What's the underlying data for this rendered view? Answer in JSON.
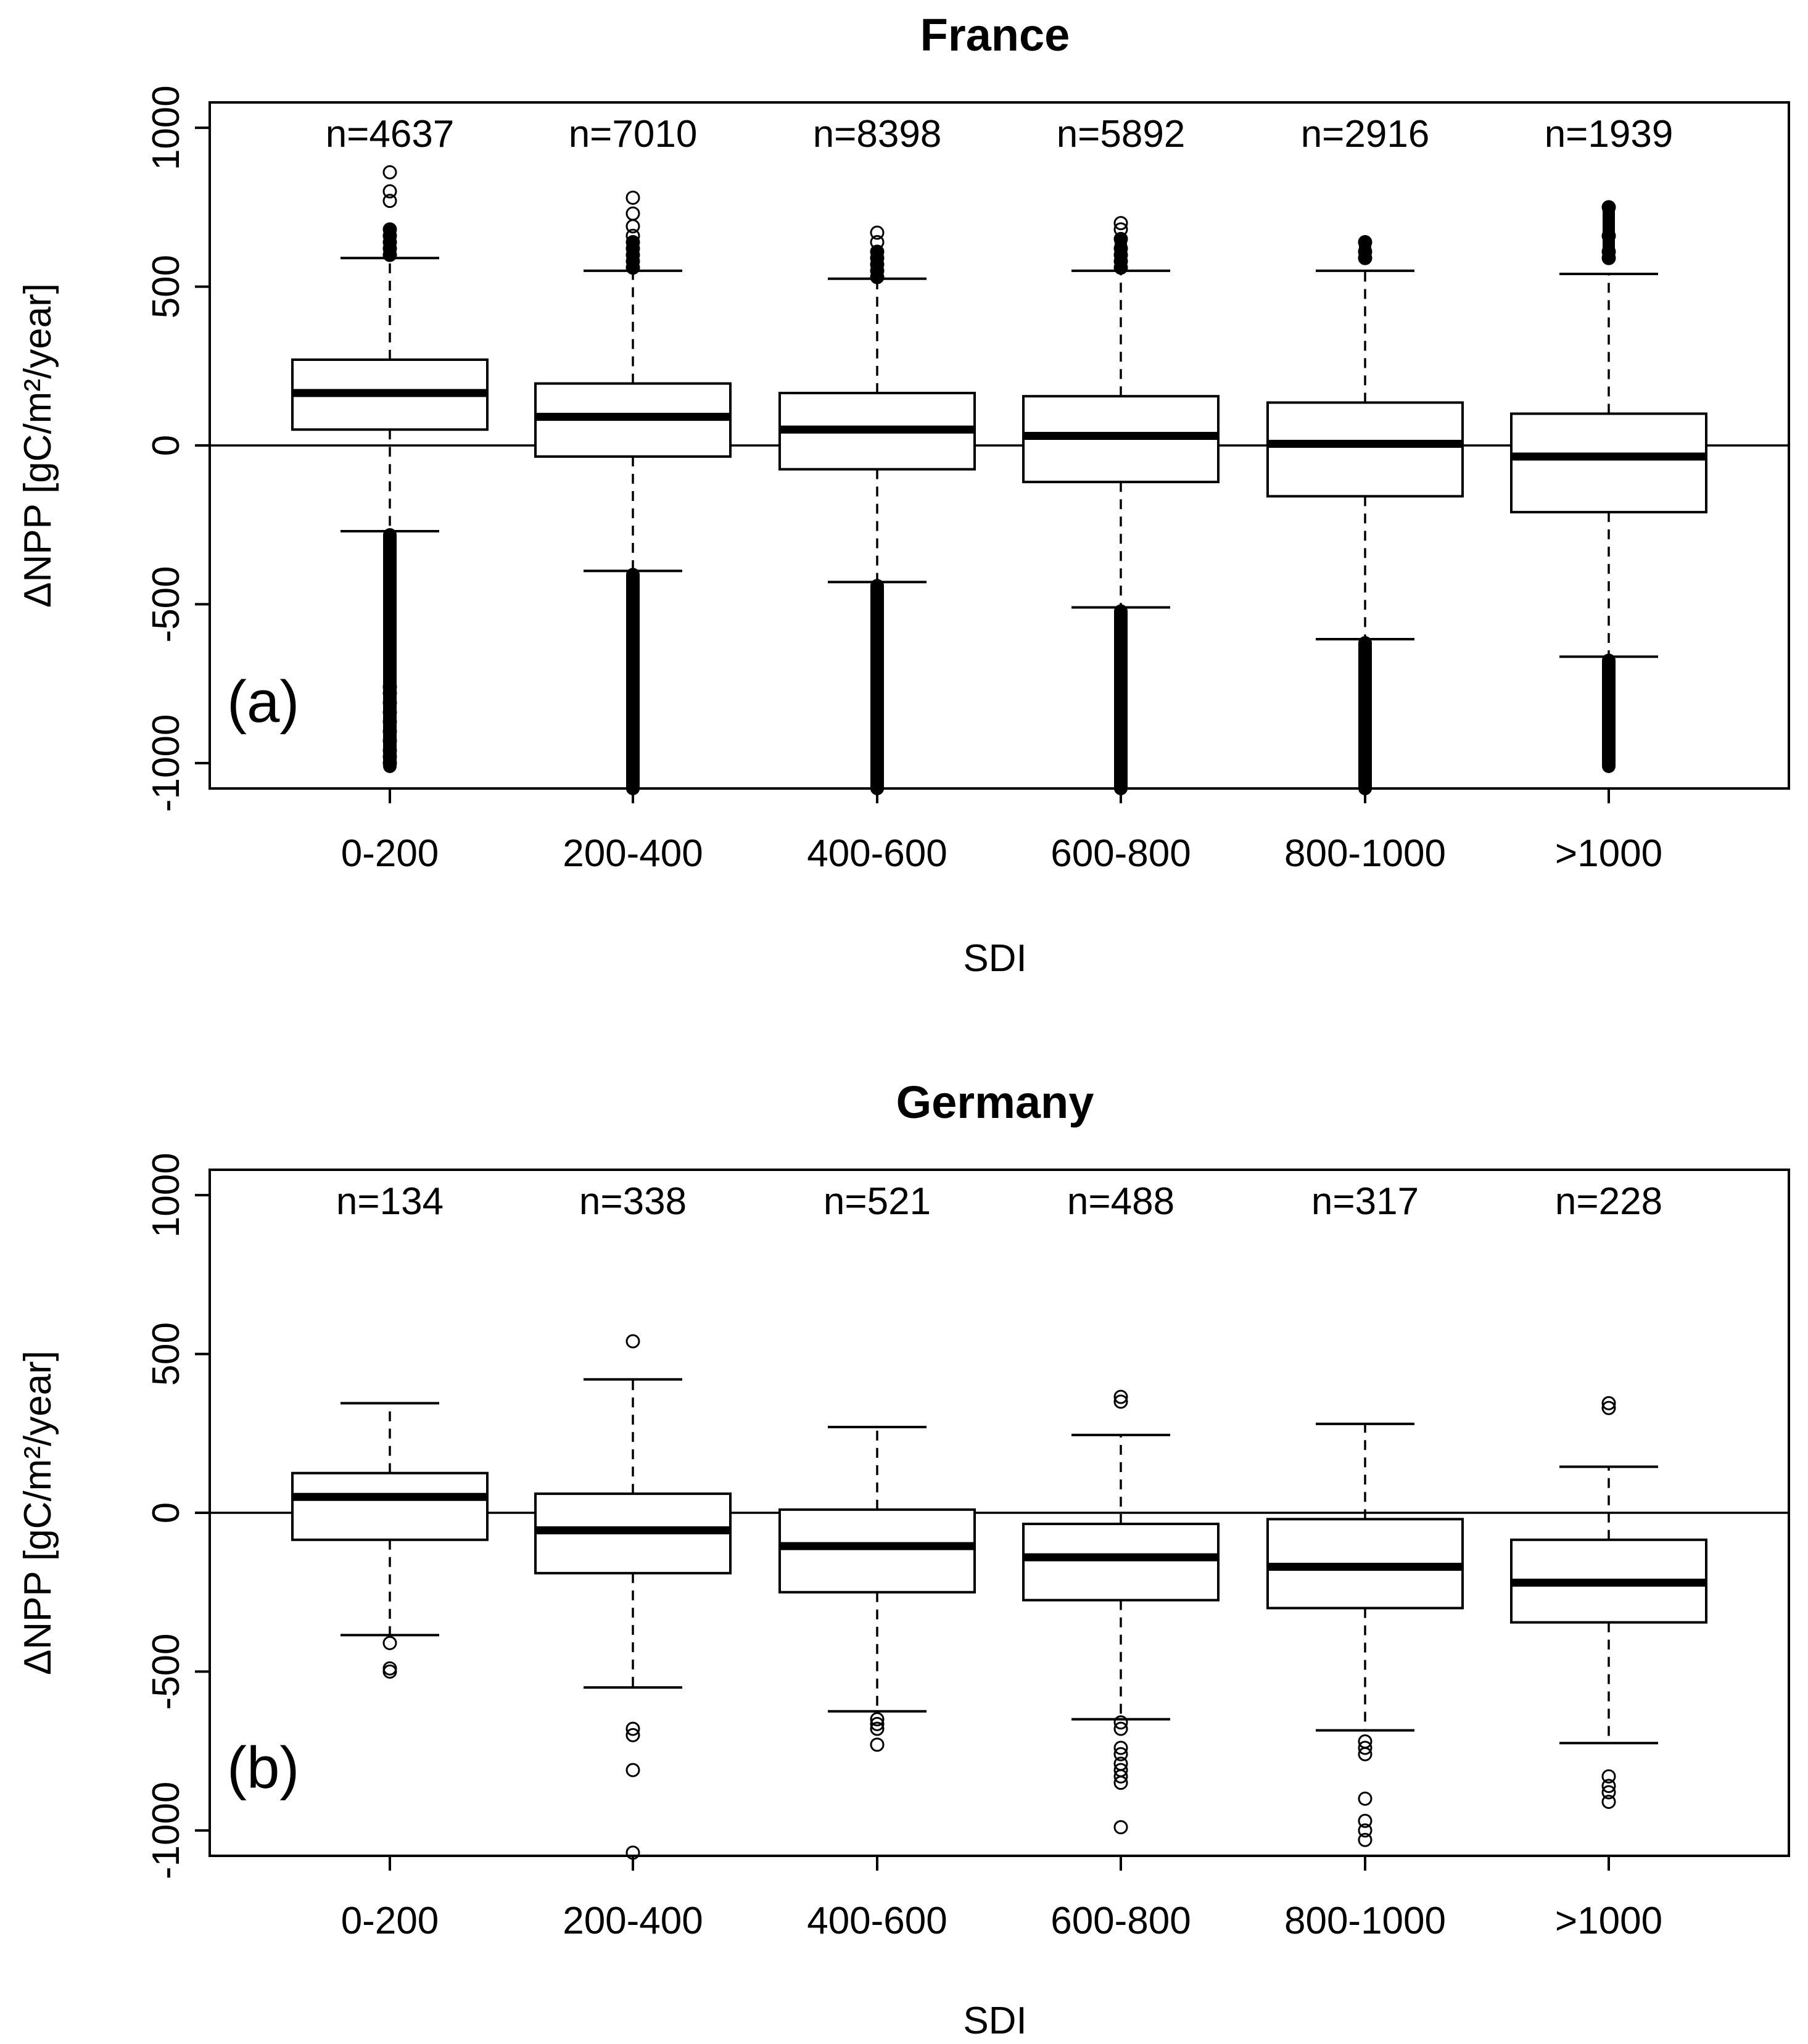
{
  "chart_data": [
    {
      "type": "box",
      "title": "France",
      "panel_label": "(a)",
      "xlabel": "SDI",
      "ylabel": "ΔNPP [gC/m²/year]",
      "ylim": [
        -1080,
        1080
      ],
      "yticks": [
        -1000,
        -500,
        0,
        500,
        1000
      ],
      "reference_line_y": 0,
      "categories": [
        "0-200",
        "200-400",
        "400-600",
        "600-800",
        "800-1000",
        ">1000"
      ],
      "counts": [
        "n=4637",
        "n=7010",
        "n=8398",
        "n=5892",
        "n=2916",
        "n=1939"
      ],
      "boxes": [
        {
          "whisker_low": -270,
          "q1": 50,
          "median": 165,
          "q3": 270,
          "whisker_high": 590,
          "outliers_high": [
            600,
            620,
            640,
            660,
            680,
            770,
            800,
            860
          ],
          "outliers_low": [
            -1000,
            -980,
            -960,
            -930,
            -900,
            -870,
            -840,
            -810,
            -780,
            -760
          ]
        },
        {
          "whisker_low": -395,
          "q1": -35,
          "median": 90,
          "q3": 195,
          "whisker_high": 550,
          "outliers_high": [
            560,
            580,
            600,
            620,
            640,
            660,
            690,
            730,
            780
          ],
          "outliers_low": []
        },
        {
          "whisker_low": -430,
          "q1": -75,
          "median": 50,
          "q3": 165,
          "whisker_high": 525,
          "outliers_high": [
            530,
            550,
            570,
            590,
            610,
            640,
            670
          ],
          "outliers_low": []
        },
        {
          "whisker_low": -510,
          "q1": -115,
          "median": 30,
          "q3": 155,
          "whisker_high": 550,
          "outliers_high": [
            560,
            580,
            600,
            620,
            650,
            680,
            700
          ],
          "outliers_low": []
        },
        {
          "whisker_low": -610,
          "q1": -160,
          "median": 5,
          "q3": 135,
          "whisker_high": 550,
          "outliers_high": [
            590,
            610,
            640
          ],
          "outliers_low": []
        },
        {
          "whisker_low": -665,
          "q1": -210,
          "median": -35,
          "q3": 100,
          "whisker_high": 540,
          "outliers_high": [
            590,
            610,
            660,
            750
          ],
          "outliers_low": []
        }
      ]
    },
    {
      "type": "box",
      "title": "Germany",
      "panel_label": "(b)",
      "xlabel": "SDI",
      "ylabel": "ΔNPP [gC/m²/year]",
      "ylim": [
        -1080,
        1080
      ],
      "yticks": [
        -1000,
        -500,
        0,
        500,
        1000
      ],
      "reference_line_y": 0,
      "categories": [
        "0-200",
        "200-400",
        "400-600",
        "600-800",
        "800-1000",
        ">1000"
      ],
      "counts": [
        "n=134",
        "n=338",
        "n=521",
        "n=488",
        "n=317",
        "n=228"
      ],
      "boxes": [
        {
          "whisker_low": -385,
          "q1": -85,
          "median": 50,
          "q3": 125,
          "whisker_high": 345,
          "outliers_high": [],
          "outliers_low": [
            -410,
            -490,
            -500
          ]
        },
        {
          "whisker_low": -550,
          "q1": -190,
          "median": -55,
          "q3": 60,
          "whisker_high": 420,
          "outliers_high": [
            540
          ],
          "outliers_low": [
            -680,
            -700,
            -810,
            -1070
          ]
        },
        {
          "whisker_low": -625,
          "q1": -250,
          "median": -105,
          "q3": 10,
          "whisker_high": 270,
          "outliers_high": [],
          "outliers_low": [
            -650,
            -665,
            -680,
            -730
          ]
        },
        {
          "whisker_low": -650,
          "q1": -275,
          "median": -140,
          "q3": -35,
          "whisker_high": 245,
          "outliers_high": [
            350,
            365
          ],
          "outliers_low": [
            -660,
            -680,
            -740,
            -760,
            -790,
            -810,
            -830,
            -850,
            -990
          ]
        },
        {
          "whisker_low": -685,
          "q1": -300,
          "median": -170,
          "q3": -20,
          "whisker_high": 280,
          "outliers_high": [],
          "outliers_low": [
            -720,
            -740,
            -760,
            -900,
            -970,
            -1000,
            -1030
          ]
        },
        {
          "whisker_low": -725,
          "q1": -345,
          "median": -220,
          "q3": -85,
          "whisker_high": 145,
          "outliers_high": [
            330,
            345
          ],
          "outliers_low": [
            -830,
            -860,
            -880,
            -910
          ]
        }
      ]
    }
  ]
}
